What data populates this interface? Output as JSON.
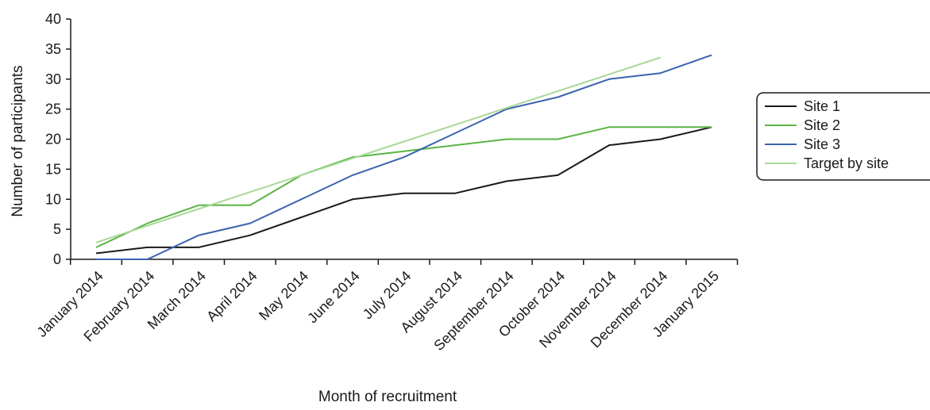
{
  "chart_data": {
    "type": "line",
    "title": "",
    "xlabel": "Month of recruitment",
    "ylabel": "Number of participants",
    "ylim": [
      0,
      40
    ],
    "yticks": [
      0,
      5,
      10,
      15,
      20,
      25,
      30,
      35,
      40
    ],
    "categories": [
      "January 2014",
      "February 2014",
      "March 2014",
      "April 2014",
      "May 2014",
      "June 2014",
      "July 2014",
      "August 2014",
      "September 2014",
      "October 2014",
      "November 2014",
      "December 2014",
      "January 2015"
    ],
    "grid": false,
    "legend_position": "right",
    "series": [
      {
        "name": "Site 1",
        "color": "#1a1a1a",
        "values": [
          1,
          2,
          2,
          4,
          7,
          10,
          11,
          11,
          13,
          14,
          19,
          20,
          22
        ]
      },
      {
        "name": "Site 2",
        "color": "#5ab444",
        "values": [
          2,
          6,
          9,
          9,
          14,
          17,
          18,
          19,
          20,
          20,
          22,
          22,
          22
        ]
      },
      {
        "name": "Site 3",
        "color": "#3a63ad",
        "values": [
          0,
          0,
          4,
          6,
          10,
          14,
          17,
          21,
          25,
          27,
          30,
          31,
          34
        ]
      },
      {
        "name": "Target by site",
        "color": "#a8d898",
        "values": [
          2.8,
          5.6,
          8.4,
          11.2,
          14,
          16.8,
          19.6,
          22.4,
          25.2,
          28,
          30.8,
          33.6,
          null
        ]
      }
    ]
  }
}
